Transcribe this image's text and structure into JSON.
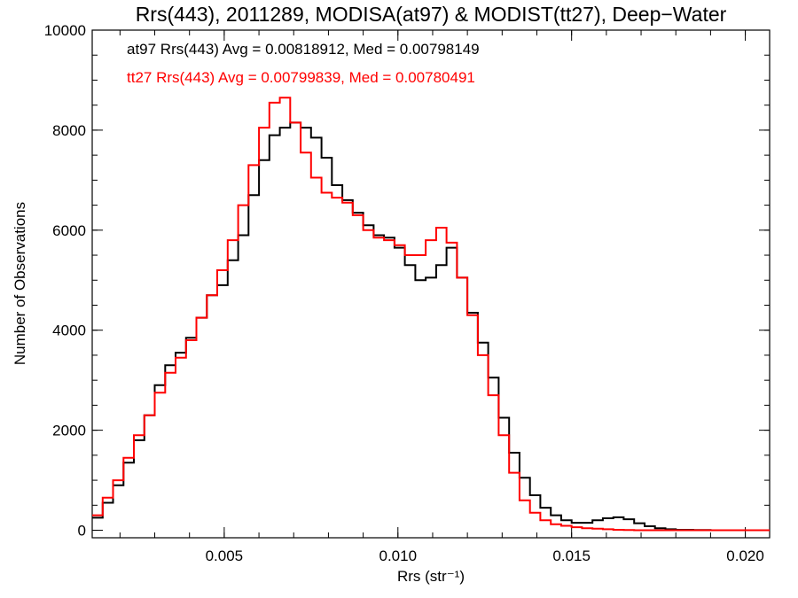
{
  "chart_data": {
    "type": "line",
    "title": "Rrs(443), 2011289, MODISA(at97) & MODIST(tt27), Deep−Water",
    "xlabel": "Rrs (str⁻¹)",
    "ylabel": "Number of Observations",
    "xlim": [
      0.0012,
      0.0207
    ],
    "ylim": [
      -150,
      10000
    ],
    "x_ticks": [
      {
        "value": 0.005,
        "label": "0.005"
      },
      {
        "value": 0.01,
        "label": "0.010"
      },
      {
        "value": 0.015,
        "label": "0.015"
      },
      {
        "value": 0.02,
        "label": "0.020"
      }
    ],
    "y_ticks": [
      {
        "value": 0,
        "label": "0"
      },
      {
        "value": 2000,
        "label": "2000"
      },
      {
        "value": 4000,
        "label": "4000"
      },
      {
        "value": 6000,
        "label": "6000"
      },
      {
        "value": 8000,
        "label": "8000"
      },
      {
        "value": 10000,
        "label": "10000"
      }
    ],
    "grid": false,
    "step": true,
    "annotations": [
      {
        "text": "at97 Rrs(443) Avg = 0.00818912, Med = 0.00798149",
        "color": "#000000"
      },
      {
        "text": "tt27 Rrs(443) Avg = 0.00799839, Med = 0.00780491",
        "color": "#ff0000"
      }
    ],
    "series": [
      {
        "color": "#000000",
        "x": [
          0.0012,
          0.0015,
          0.0018,
          0.0021,
          0.0024,
          0.0027,
          0.003,
          0.0033,
          0.0036,
          0.0039,
          0.0042,
          0.0045,
          0.0048,
          0.0051,
          0.0054,
          0.0057,
          0.006,
          0.0063,
          0.0066,
          0.0069,
          0.0072,
          0.0075,
          0.0078,
          0.0081,
          0.0084,
          0.0087,
          0.009,
          0.0093,
          0.0096,
          0.0099,
          0.0102,
          0.0105,
          0.0108,
          0.0111,
          0.0114,
          0.0117,
          0.012,
          0.0123,
          0.0126,
          0.0129,
          0.0132,
          0.0135,
          0.0138,
          0.0141,
          0.0144,
          0.0147,
          0.015,
          0.0153,
          0.0156,
          0.0159,
          0.0162,
          0.0165,
          0.0168,
          0.0171,
          0.0174,
          0.0177,
          0.018,
          0.0185,
          0.019,
          0.0195,
          0.02,
          0.0207
        ],
        "y": [
          250,
          550,
          900,
          1350,
          1800,
          2300,
          2900,
          3300,
          3550,
          3850,
          4250,
          4700,
          4900,
          5400,
          5900,
          6700,
          7400,
          7900,
          8050,
          8150,
          8050,
          7850,
          7450,
          6900,
          6600,
          6350,
          6100,
          5900,
          5850,
          5650,
          5300,
          5000,
          5050,
          5300,
          5650,
          5050,
          4350,
          3750,
          3050,
          2250,
          1550,
          1050,
          700,
          450,
          300,
          200,
          150,
          150,
          200,
          240,
          260,
          220,
          140,
          80,
          40,
          20,
          10,
          5,
          0,
          0,
          0,
          0
        ]
      },
      {
        "color": "#ff0000",
        "x": [
          0.0012,
          0.0015,
          0.0018,
          0.0021,
          0.0024,
          0.0027,
          0.003,
          0.0033,
          0.0036,
          0.0039,
          0.0042,
          0.0045,
          0.0048,
          0.0051,
          0.0054,
          0.0057,
          0.006,
          0.0063,
          0.0066,
          0.0069,
          0.0072,
          0.0075,
          0.0078,
          0.0081,
          0.0084,
          0.0087,
          0.009,
          0.0093,
          0.0096,
          0.0099,
          0.0102,
          0.0105,
          0.0108,
          0.0111,
          0.0114,
          0.0117,
          0.012,
          0.0123,
          0.0126,
          0.0129,
          0.0132,
          0.0135,
          0.0138,
          0.0141,
          0.0144,
          0.0147,
          0.015,
          0.0153,
          0.0156,
          0.0159,
          0.0162,
          0.0165,
          0.0168,
          0.0171,
          0.0174,
          0.0177,
          0.018,
          0.0185,
          0.019,
          0.0195,
          0.02,
          0.0207
        ],
        "y": [
          300,
          650,
          1000,
          1450,
          1900,
          2300,
          2750,
          3150,
          3450,
          3800,
          4250,
          4700,
          5200,
          5800,
          6500,
          7300,
          8050,
          8550,
          8650,
          8150,
          7550,
          7050,
          6750,
          6650,
          6550,
          6300,
          6000,
          5850,
          5800,
          5700,
          5500,
          5500,
          5800,
          6050,
          5750,
          5050,
          4300,
          3500,
          2700,
          1900,
          1150,
          600,
          350,
          200,
          120,
          90,
          60,
          40,
          30,
          20,
          10,
          5,
          0,
          0,
          0,
          0,
          0,
          0,
          0,
          0,
          0,
          0
        ]
      }
    ]
  }
}
